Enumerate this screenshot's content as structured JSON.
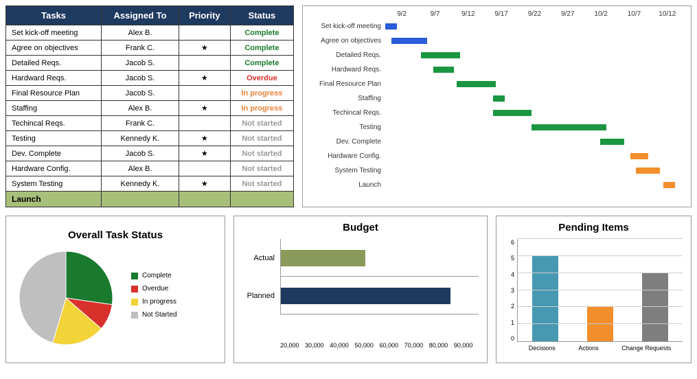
{
  "task_table": {
    "headers": [
      "Tasks",
      "Assigned To",
      "Priority",
      "Status"
    ],
    "rows": [
      {
        "task": "Set kick-off meeting",
        "assignee": "Alex B.",
        "priority": false,
        "status": "Complete",
        "status_class": "complete"
      },
      {
        "task": "Agree on objectives",
        "assignee": "Frank C.",
        "priority": true,
        "status": "Complete",
        "status_class": "complete"
      },
      {
        "task": "Detailed Reqs.",
        "assignee": "Jacob S.",
        "priority": false,
        "status": "Complete",
        "status_class": "complete"
      },
      {
        "task": "Hardward Reqs.",
        "assignee": "Jacob S.",
        "priority": true,
        "status": "Overdue",
        "status_class": "overdue"
      },
      {
        "task": "Final Resource Plan",
        "assignee": "Jacob S.",
        "priority": false,
        "status": "In progress",
        "status_class": "inprogress"
      },
      {
        "task": "Staffing",
        "assignee": "Alex B.",
        "priority": true,
        "status": "In progress",
        "status_class": "inprogress"
      },
      {
        "task": "Techincal Reqs.",
        "assignee": "Frank C.",
        "priority": false,
        "status": "Not started",
        "status_class": "notstarted"
      },
      {
        "task": "Testing",
        "assignee": "Kennedy K.",
        "priority": true,
        "status": "Not started",
        "status_class": "notstarted"
      },
      {
        "task": "Dev. Complete",
        "assignee": "Jacob S.",
        "priority": true,
        "status": "Not started",
        "status_class": "notstarted"
      },
      {
        "task": "Hardware Config.",
        "assignee": "Alex B.",
        "priority": false,
        "status": "Not started",
        "status_class": "notstarted"
      },
      {
        "task": "System Testing",
        "assignee": "Kennedy K.",
        "priority": true,
        "status": "Not started",
        "status_class": "notstarted"
      }
    ],
    "launch_label": "Launch",
    "status_colors": {
      "complete": "#1a7a2e",
      "overdue": "#d9302c",
      "inprogress": "#e8833a",
      "notstarted": "#999"
    }
  },
  "gantt": {
    "type": "gantt",
    "date_labels": [
      "9/2",
      "9/7",
      "9/12",
      "9/17",
      "9/22",
      "9/27",
      "10/2",
      "10/7",
      "10/12"
    ],
    "tasks": [
      {
        "label": "Set kick-off meeting",
        "start_pct": 0,
        "width_pct": 4,
        "color": "#2b5cd9"
      },
      {
        "label": "Agree on objectives",
        "start_pct": 2,
        "width_pct": 12,
        "color": "#2b5cd9"
      },
      {
        "label": "Detailed Reqs.",
        "start_pct": 12,
        "width_pct": 13,
        "color": "#1a9641"
      },
      {
        "label": "Hardward Reqs.",
        "start_pct": 16,
        "width_pct": 7,
        "color": "#1a9641"
      },
      {
        "label": "Final Resource Plan",
        "start_pct": 24,
        "width_pct": 13,
        "color": "#1a9641"
      },
      {
        "label": "Staffing",
        "start_pct": 36,
        "width_pct": 4,
        "color": "#1a9641"
      },
      {
        "label": "Techincal Reqs.",
        "start_pct": 36,
        "width_pct": 13,
        "color": "#1a9641"
      },
      {
        "label": "Testing",
        "start_pct": 49,
        "width_pct": 25,
        "color": "#1a9641"
      },
      {
        "label": "Dev. Complete",
        "start_pct": 72,
        "width_pct": 8,
        "color": "#1a9641"
      },
      {
        "label": "Hardware Config.",
        "start_pct": 82,
        "width_pct": 6,
        "color": "#f28e2b"
      },
      {
        "label": "System Testing",
        "start_pct": 84,
        "width_pct": 8,
        "color": "#f28e2b"
      },
      {
        "label": "Launch",
        "start_pct": 93,
        "width_pct": 4,
        "color": "#f28e2b"
      }
    ]
  },
  "pie": {
    "type": "pie",
    "title": "Overall Task Status",
    "slices": [
      {
        "label": "Complete",
        "value": 3,
        "color": "#1a7a2e"
      },
      {
        "label": "Overdue",
        "value": 1,
        "color": "#d9302c"
      },
      {
        "label": "In progress",
        "value": 2,
        "color": "#f2d338"
      },
      {
        "label": "Not Started",
        "value": 5,
        "color": "#bfbfbf"
      }
    ],
    "radius": 68
  },
  "budget": {
    "type": "bar-horizontal",
    "title": "Budget",
    "xmin": 20000,
    "xmax": 90000,
    "xtick_step": 10000,
    "ticks": [
      "20,000",
      "30,000",
      "40,000",
      "50,000",
      "60,000",
      "70,000",
      "80,000",
      "90,000"
    ],
    "bars": [
      {
        "label": "Actual",
        "value": 50000,
        "color": "#8a9a5b"
      },
      {
        "label": "Planned",
        "value": 80000,
        "color": "#1f3a5f"
      }
    ]
  },
  "pending": {
    "type": "bar",
    "title": "Pending Items",
    "ymax": 6,
    "ytick_step": 1,
    "bars": [
      {
        "label": "Decisions",
        "value": 5,
        "color": "#4699b0"
      },
      {
        "label": "Actions",
        "value": 2,
        "color": "#f28e2b"
      },
      {
        "label": "Change Requests",
        "value": 4,
        "color": "#7f7f7f"
      }
    ]
  }
}
